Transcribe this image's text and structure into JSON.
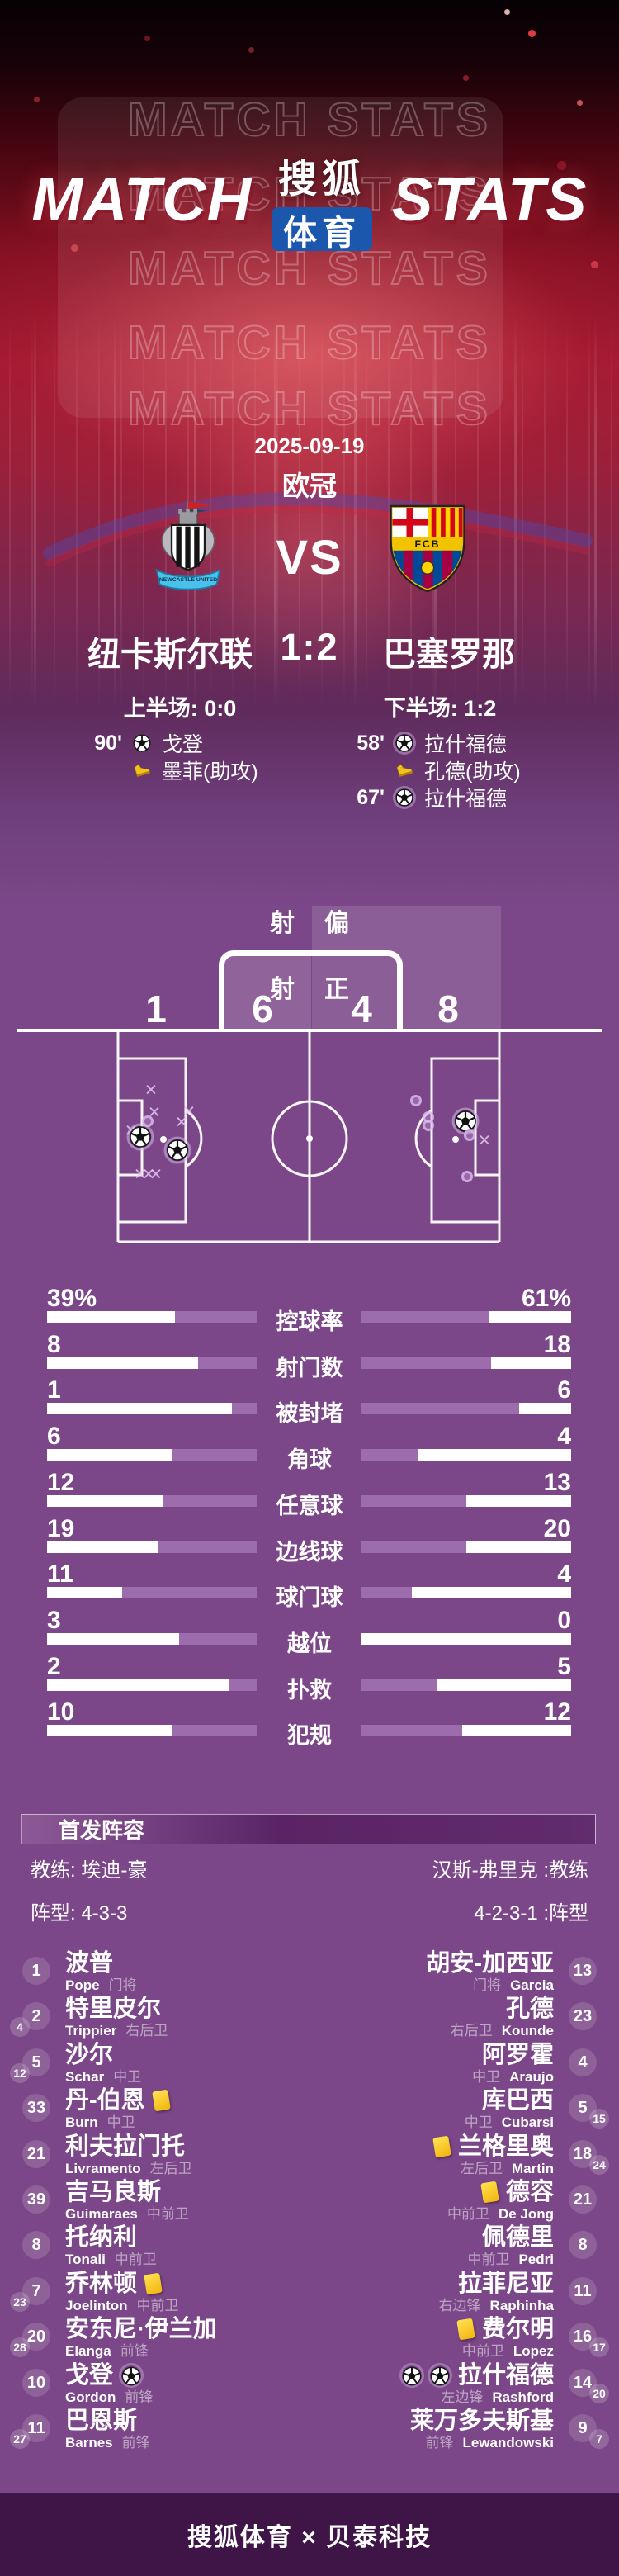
{
  "colors": {
    "bg_purple": "#7b4788",
    "bar_fill": "#9d6cac",
    "sohu_blue": "#1a57ad",
    "footer_bg": "#3e1546",
    "yellow_card": "#f2b50d",
    "hero_red": "#a01b33"
  },
  "header": {
    "watermark_rows": [
      "MATCH STATS",
      "MATCH STATS",
      "MATCH STATS",
      "MATCH STATS",
      "MATCH STATS"
    ],
    "title_left": "MATCH",
    "title_right": "STATS",
    "logo_top": "搜狐",
    "logo_bottom": "体育"
  },
  "match": {
    "date": "2025-09-19",
    "competition": "欧冠",
    "vs_label": "VS",
    "home_name": "纽卡斯尔联",
    "away_name": "巴塞罗那",
    "score": "1:2",
    "home_half": "上半场: 0:0",
    "away_half": "下半场: 1:2",
    "home_crest_text": "NEWCASTLE UNITED",
    "away_crest_text": "FCB",
    "home_events": [
      {
        "time": "90'",
        "icon": "goal",
        "player": "戈登"
      },
      {
        "time": "",
        "icon": "assist",
        "player": "墨菲(助攻)"
      }
    ],
    "away_events": [
      {
        "time": "58'",
        "icon": "goal",
        "player": "拉什福德"
      },
      {
        "time": "",
        "icon": "assist",
        "player": "孔德(助攻)"
      },
      {
        "time": "67'",
        "icon": "goal",
        "player": "拉什福德"
      }
    ]
  },
  "shotmap": {
    "off_left_char": "射",
    "off_right_char": "偏",
    "on_left_char": "射",
    "on_right_char": "正",
    "home_off": "1",
    "home_on": "6",
    "away_on": "4",
    "away_off": "8",
    "markers": [
      {
        "side": "home",
        "type": "x",
        "x": 183,
        "y": 246
      },
      {
        "side": "home",
        "type": "x",
        "x": 187,
        "y": 273
      },
      {
        "side": "home",
        "type": "x",
        "x": 229,
        "y": 272
      },
      {
        "side": "home",
        "type": "x",
        "x": 220,
        "y": 285
      },
      {
        "side": "home",
        "type": "dot",
        "x": 179,
        "y": 283
      },
      {
        "side": "home",
        "type": "x",
        "x": 159,
        "y": 295
      },
      {
        "side": "home",
        "type": "goal",
        "x": 170,
        "y": 302
      },
      {
        "side": "home",
        "type": "goal",
        "x": 215,
        "y": 318
      },
      {
        "side": "home",
        "type": "x",
        "x": 170,
        "y": 348
      },
      {
        "side": "home",
        "type": "x",
        "x": 180,
        "y": 348
      },
      {
        "side": "home",
        "type": "x",
        "x": 189,
        "y": 348
      },
      {
        "side": "away",
        "type": "dot",
        "x": 504,
        "y": 258
      },
      {
        "side": "away",
        "type": "dot",
        "x": 519,
        "y": 278
      },
      {
        "side": "away",
        "type": "dot",
        "x": 519,
        "y": 288
      },
      {
        "side": "away",
        "type": "goal",
        "x": 564,
        "y": 283
      },
      {
        "side": "away",
        "type": "dot",
        "x": 569,
        "y": 300
      },
      {
        "side": "away",
        "type": "x",
        "x": 587,
        "y": 307
      },
      {
        "side": "away",
        "type": "dot",
        "x": 566,
        "y": 350
      }
    ]
  },
  "stats_rows": [
    {
      "label": "控球率",
      "home": "39%",
      "away": "61%",
      "home_pct": 39,
      "away_pct": 61
    },
    {
      "label": "射门数",
      "home": "8",
      "away": "18",
      "home_pct": 28,
      "away_pct": 62
    },
    {
      "label": "被封堵",
      "home": "1",
      "away": "6",
      "home_pct": 12,
      "away_pct": 75
    },
    {
      "label": "角球",
      "home": "6",
      "away": "4",
      "home_pct": 40,
      "away_pct": 27
    },
    {
      "label": "任意球",
      "home": "12",
      "away": "13",
      "home_pct": 45,
      "away_pct": 50
    },
    {
      "label": "边线球",
      "home": "19",
      "away": "20",
      "home_pct": 47,
      "away_pct": 50
    },
    {
      "label": "球门球",
      "home": "11",
      "away": "4",
      "home_pct": 64,
      "away_pct": 24
    },
    {
      "label": "越位",
      "home": "3",
      "away": "0",
      "home_pct": 37,
      "away_pct": 0
    },
    {
      "label": "扑救",
      "home": "2",
      "away": "5",
      "home_pct": 13,
      "away_pct": 36
    },
    {
      "label": "犯规",
      "home": "10",
      "away": "12",
      "home_pct": 40,
      "away_pct": 48
    }
  ],
  "lineups": {
    "section_title": "首发阵容",
    "home_coach": "教练: 埃迪-豪",
    "away_coach": "汉斯-弗里克 :教练",
    "home_formation": "阵型: 4-3-3",
    "away_formation": "4-2-3-1 :阵型",
    "home_players": [
      {
        "num": "1",
        "cn": "波普",
        "en": "Pope",
        "pos": "门将",
        "sub": "",
        "yellow": false,
        "goals": 0
      },
      {
        "num": "2",
        "cn": "特里皮尔",
        "en": "Trippier",
        "pos": "右后卫",
        "sub": "4",
        "yellow": false,
        "goals": 0
      },
      {
        "num": "5",
        "cn": "沙尔",
        "en": "Schar",
        "pos": "中卫",
        "sub": "12",
        "yellow": false,
        "goals": 0
      },
      {
        "num": "33",
        "cn": "丹-伯恩",
        "en": "Burn",
        "pos": "中卫",
        "sub": "",
        "yellow": true,
        "goals": 0
      },
      {
        "num": "21",
        "cn": "利夫拉门托",
        "en": "Livramento",
        "pos": "左后卫",
        "sub": "",
        "yellow": false,
        "goals": 0
      },
      {
        "num": "39",
        "cn": "吉马良斯",
        "en": "Guimaraes",
        "pos": "中前卫",
        "sub": "",
        "yellow": false,
        "goals": 0
      },
      {
        "num": "8",
        "cn": "托纳利",
        "en": "Tonali",
        "pos": "中前卫",
        "sub": "",
        "yellow": false,
        "goals": 0
      },
      {
        "num": "7",
        "cn": "乔林顿",
        "en": "Joelinton",
        "pos": "中前卫",
        "sub": "23",
        "yellow": true,
        "goals": 0
      },
      {
        "num": "20",
        "cn": "安东尼·伊兰加",
        "en": "Elanga",
        "pos": "前锋",
        "sub": "28",
        "yellow": false,
        "goals": 0
      },
      {
        "num": "10",
        "cn": "戈登",
        "en": "Gordon",
        "pos": "前锋",
        "sub": "",
        "yellow": false,
        "goals": 1
      },
      {
        "num": "11",
        "cn": "巴恩斯",
        "en": "Barnes",
        "pos": "前锋",
        "sub": "27",
        "yellow": false,
        "goals": 0
      }
    ],
    "away_players": [
      {
        "num": "13",
        "cn": "胡安-加西亚",
        "en": "Garcia",
        "pos": "门将",
        "sub": "",
        "yellow": false,
        "goals": 0
      },
      {
        "num": "23",
        "cn": "孔德",
        "en": "Kounde",
        "pos": "右后卫",
        "sub": "",
        "yellow": false,
        "goals": 0
      },
      {
        "num": "4",
        "cn": "阿罗霍",
        "en": "Araujo",
        "pos": "中卫",
        "sub": "",
        "yellow": false,
        "goals": 0
      },
      {
        "num": "5",
        "cn": "库巴西",
        "en": "Cubarsi",
        "pos": "中卫",
        "sub": "15",
        "yellow": false,
        "goals": 0
      },
      {
        "num": "18",
        "cn": "兰格里奥",
        "en": "Martin",
        "pos": "左后卫",
        "sub": "24",
        "yellow": true,
        "goals": 0
      },
      {
        "num": "21",
        "cn": "德容",
        "en": "De Jong",
        "pos": "中前卫",
        "sub": "",
        "yellow": true,
        "goals": 0
      },
      {
        "num": "8",
        "cn": "佩德里",
        "en": "Pedri",
        "pos": "中前卫",
        "sub": "",
        "yellow": false,
        "goals": 0
      },
      {
        "num": "11",
        "cn": "拉菲尼亚",
        "en": "Raphinha",
        "pos": "右边锋",
        "sub": "",
        "yellow": false,
        "goals": 0
      },
      {
        "num": "16",
        "cn": "费尔明",
        "en": "Lopez",
        "pos": "中前卫",
        "sub": "17",
        "yellow": true,
        "goals": 0
      },
      {
        "num": "14",
        "cn": "拉什福德",
        "en": "Rashford",
        "pos": "左边锋",
        "sub": "20",
        "yellow": false,
        "goals": 2
      },
      {
        "num": "9",
        "cn": "莱万多夫斯基",
        "en": "Lewandowski",
        "pos": "前锋",
        "sub": "7",
        "yellow": false,
        "goals": 0
      }
    ]
  },
  "footer": {
    "text": "搜狐体育 × 贝泰科技"
  },
  "chart_data": {
    "type": "bar",
    "title": "MATCH STATS 欧冠 2025-09-19 纽卡斯尔联 1:2 巴塞罗那",
    "categories": [
      "控球率",
      "射门数",
      "被封堵",
      "角球",
      "任意球",
      "边线球",
      "球门球",
      "越位",
      "扑救",
      "犯规"
    ],
    "series": [
      {
        "name": "纽卡斯尔联",
        "values": [
          39,
          8,
          1,
          6,
          12,
          19,
          11,
          3,
          2,
          10
        ]
      },
      {
        "name": "巴塞罗那",
        "values": [
          61,
          18,
          6,
          4,
          13,
          20,
          4,
          0,
          5,
          12
        ]
      }
    ],
    "value_units": [
      "%",
      "",
      "",
      "",
      "",
      "",
      "",
      "",
      "",
      ""
    ],
    "shot_distribution": {
      "home": {
        "off_target": 1,
        "on_target": 6
      },
      "away": {
        "on_target": 4,
        "off_target": 8
      }
    },
    "halves": {
      "first": "0:0",
      "second": "1:2"
    },
    "legend_position": "none",
    "grid": false
  }
}
